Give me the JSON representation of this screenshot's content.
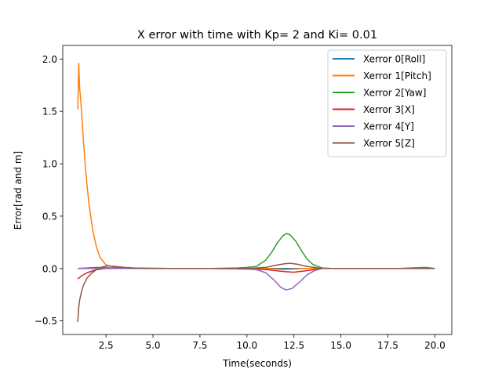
{
  "chart_data": {
    "type": "line",
    "title": "X error with time with Kp= 2 and Ki= 0.01",
    "xlabel": "Time(seconds)",
    "ylabel": "Error[rad and m]",
    "xlim": [
      0.2,
      20.9
    ],
    "ylim": [
      -0.63,
      2.13
    ],
    "x_ticks": [
      2.5,
      5.0,
      7.5,
      10.0,
      12.5,
      15.0,
      17.5,
      20.0
    ],
    "x_tick_labels": [
      "2.5",
      "5.0",
      "7.5",
      "10.0",
      "12.5",
      "15.0",
      "17.5",
      "20.0"
    ],
    "y_ticks": [
      -0.5,
      0.0,
      0.5,
      1.0,
      1.5,
      2.0
    ],
    "y_tick_labels": [
      "−0.5",
      "0.0",
      "0.5",
      "1.0",
      "1.5",
      "2.0"
    ],
    "grid": false,
    "legend_position": "top-right",
    "series": [
      {
        "name": "Xerror 0[Roll]",
        "color": "#1f77b4",
        "x": [
          1.0,
          2.0,
          3.0,
          5.0,
          8.0,
          10.0,
          11.0,
          12.0,
          13.0,
          14.0,
          16.0,
          18.0,
          20.0
        ],
        "y": [
          0.0,
          0.0,
          0.0,
          0.0,
          0.0,
          0.0,
          0.0,
          0.0,
          0.0,
          0.0,
          0.0,
          0.0,
          0.0
        ]
      },
      {
        "name": "Xerror 1[Pitch]",
        "color": "#ff7f0e",
        "x": [
          1.0,
          1.05,
          1.1,
          1.15,
          1.2,
          1.3,
          1.4,
          1.5,
          1.6,
          1.8,
          2.0,
          2.2,
          2.5,
          3.0,
          3.5,
          4.0,
          5.0,
          8.0,
          10.0,
          11.0,
          12.0,
          13.0,
          14.0,
          16.0,
          18.0,
          20.0
        ],
        "y": [
          1.52,
          1.96,
          1.72,
          1.62,
          1.5,
          1.22,
          0.98,
          0.78,
          0.61,
          0.36,
          0.2,
          0.1,
          0.035,
          0.01,
          0.0,
          0.0,
          0.0,
          0.0,
          0.0,
          0.0,
          -0.01,
          0.0,
          0.0,
          0.0,
          0.0,
          0.0
        ]
      },
      {
        "name": "Xerror 2[Yaw]",
        "color": "#2ca02c",
        "x": [
          1.0,
          2.0,
          3.0,
          4.0,
          6.0,
          8.0,
          9.5,
          10.0,
          10.5,
          11.0,
          11.3,
          11.6,
          11.9,
          12.1,
          12.3,
          12.6,
          12.9,
          13.2,
          13.5,
          14.0,
          14.5,
          16.0,
          18.0,
          19.5,
          20.0
        ],
        "y": [
          0.0,
          0.01,
          0.005,
          0.0,
          0.0,
          0.0,
          0.005,
          0.01,
          0.02,
          0.08,
          0.15,
          0.24,
          0.31,
          0.335,
          0.32,
          0.26,
          0.17,
          0.09,
          0.04,
          0.005,
          0.0,
          0.0,
          0.0,
          0.01,
          0.0
        ]
      },
      {
        "name": "Xerror 3[X]",
        "color": "#d62728",
        "x": [
          1.0,
          1.2,
          1.5,
          2.0,
          2.5,
          3.0,
          4.0,
          6.0,
          10.0,
          11.0,
          12.0,
          12.5,
          13.0,
          14.0,
          16.0,
          20.0
        ],
        "y": [
          -0.1,
          -0.07,
          -0.04,
          -0.01,
          0.0,
          0.005,
          0.0,
          0.0,
          0.0,
          -0.01,
          -0.03,
          -0.035,
          -0.025,
          0.0,
          0.0,
          0.0
        ]
      },
      {
        "name": "Xerror 4[Y]",
        "color": "#9467bd",
        "x": [
          1.0,
          2.0,
          3.0,
          4.0,
          6.0,
          8.0,
          10.0,
          10.5,
          11.0,
          11.5,
          11.8,
          12.1,
          12.4,
          12.8,
          13.2,
          13.6,
          14.0,
          15.0,
          18.0,
          20.0
        ],
        "y": [
          0.0,
          0.0,
          0.0,
          0.0,
          0.0,
          0.0,
          -0.005,
          -0.01,
          -0.04,
          -0.12,
          -0.18,
          -0.205,
          -0.19,
          -0.13,
          -0.06,
          -0.02,
          0.0,
          0.0,
          0.0,
          0.0
        ]
      },
      {
        "name": "Xerror 5[Z]",
        "color": "#8c564b",
        "x": [
          1.0,
          1.05,
          1.1,
          1.2,
          1.3,
          1.5,
          1.7,
          2.0,
          2.3,
          2.6,
          3.0,
          3.5,
          4.0,
          6.0,
          10.0,
          11.0,
          11.5,
          12.0,
          12.3,
          12.7,
          13.2,
          13.8,
          14.5,
          16.0,
          20.0
        ],
        "y": [
          -0.51,
          -0.37,
          -0.3,
          -0.22,
          -0.16,
          -0.09,
          -0.05,
          -0.01,
          0.015,
          0.025,
          0.02,
          0.01,
          0.005,
          0.0,
          0.0,
          0.01,
          0.03,
          0.045,
          0.05,
          0.04,
          0.02,
          0.005,
          0.0,
          0.0,
          0.0
        ]
      }
    ]
  }
}
